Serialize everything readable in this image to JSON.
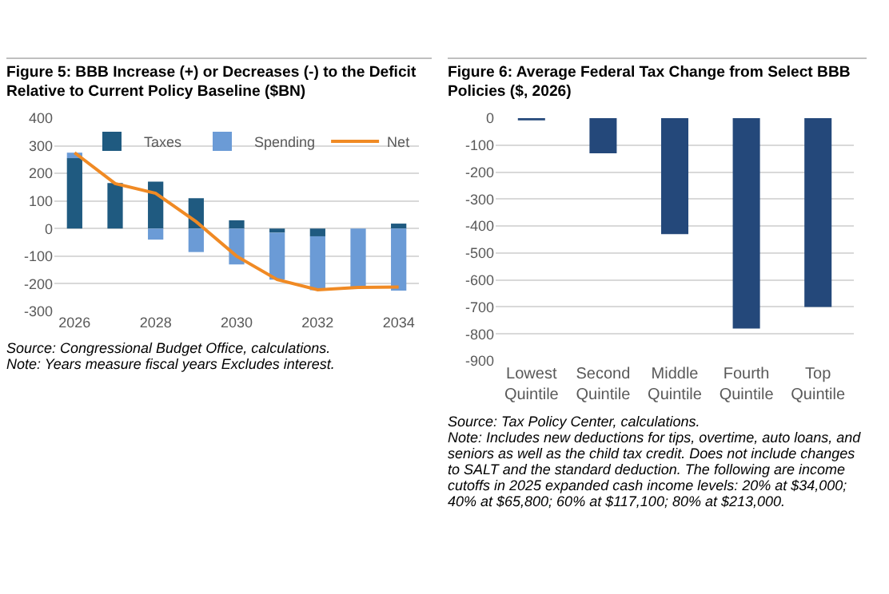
{
  "chart_data": [
    {
      "type": "bar",
      "title": "Figure 5: BBB Increase (+) or Decreases (-) to the Deficit Relative to Current Policy Baseline ($BN)",
      "x": [
        2026,
        2027,
        2028,
        2029,
        2030,
        2031,
        2032,
        2033,
        2034
      ],
      "series": [
        {
          "name": "Taxes",
          "color": "#1f5a80",
          "values": [
            255,
            165,
            170,
            110,
            30,
            -15,
            -28,
            0,
            18
          ]
        },
        {
          "name": "Spending",
          "color": "#6b9bd6",
          "values": [
            20,
            0,
            -40,
            -85,
            -130,
            -170,
            -195,
            -215,
            -225
          ]
        },
        {
          "name": "Net",
          "type": "line",
          "color": "#f08a24",
          "values": [
            275,
            163,
            128,
            25,
            -100,
            -185,
            -222,
            -213,
            -212
          ]
        }
      ],
      "stacked": true,
      "xlim": [
        2025.5,
        2034.5
      ],
      "xticks": [
        2026,
        2028,
        2030,
        2032,
        2034
      ],
      "ylim": [
        -300,
        400
      ],
      "yticks": [
        -300,
        -200,
        -100,
        0,
        100,
        200,
        300,
        400
      ],
      "grid": "y",
      "legend": "top right",
      "annotations": [
        "Source: Congressional Budget Office, calculations.",
        "Note: Years measure fiscal years Excludes interest."
      ]
    },
    {
      "type": "bar",
      "title": "Figure 6: Average Federal Tax Change from Select BBB Policies ($, 2026)",
      "categories": [
        "Lowest Quintile",
        "Second Quintile",
        "Middle Quintile",
        "Fourth Quintile",
        "Top Quintile"
      ],
      "values": [
        -8,
        -130,
        -430,
        -780,
        -700
      ],
      "color": "#24487a",
      "ylim": [
        -900,
        0
      ],
      "yticks": [
        -900,
        -800,
        -700,
        -600,
        -500,
        -400,
        -300,
        -200,
        -100,
        0
      ],
      "grid": "y",
      "annotations": [
        "Source: Tax Policy Center, calculations.",
        "Note: Includes new deductions for tips, overtime, auto loans, and seniors as well as the child tax credit. Does not include changes to SALT and the standard deduction. The following are income cutoffs in 2025 expanded cash income levels: 20% at $34,000; 40% at $65,800; 60% at $117,100; 80% at $213,000."
      ]
    }
  ]
}
